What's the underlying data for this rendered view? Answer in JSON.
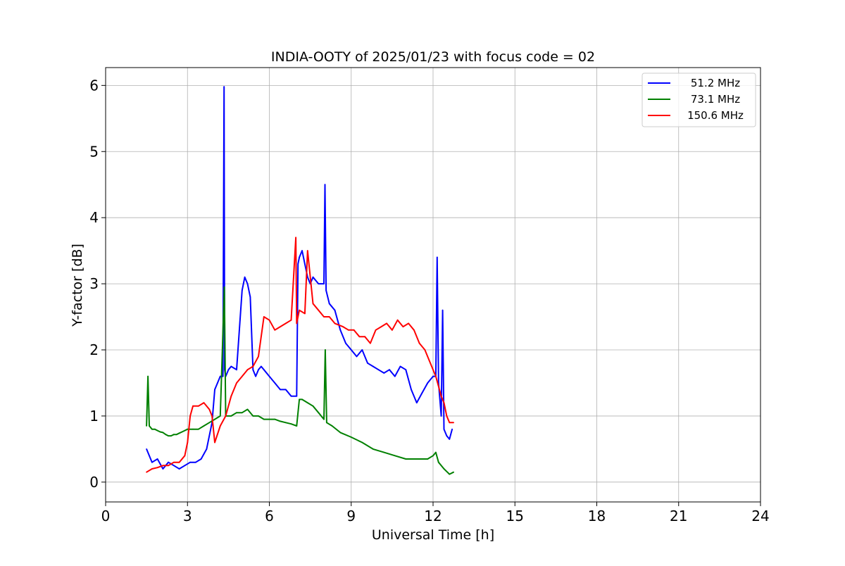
{
  "chart_data": {
    "type": "line",
    "title": "INDIA-OOTY of 2025/01/23 with focus code = 02",
    "xlabel": "Universal Time [h]",
    "ylabel": "Y-factor [dB]",
    "xlim": [
      0,
      24
    ],
    "ylim": [
      -0.3,
      6.27
    ],
    "xticks": [
      0,
      3,
      6,
      9,
      12,
      15,
      18,
      21,
      24
    ],
    "yticks": [
      0,
      1,
      2,
      3,
      4,
      5,
      6
    ],
    "grid": true,
    "legend_position": "top-right",
    "series": [
      {
        "name": "51.2 MHz",
        "color": "#0000ff",
        "x": [
          1.5,
          1.7,
          1.9,
          2.1,
          2.3,
          2.5,
          2.7,
          2.9,
          3.1,
          3.3,
          3.5,
          3.7,
          3.9,
          4.0,
          4.1,
          4.2,
          4.3,
          4.34,
          4.36,
          4.4,
          4.5,
          4.6,
          4.8,
          4.9,
          5.0,
          5.1,
          5.2,
          5.3,
          5.4,
          5.5,
          5.6,
          5.7,
          5.8,
          5.9,
          6.0,
          6.2,
          6.4,
          6.6,
          6.8,
          7.0,
          7.05,
          7.1,
          7.2,
          7.3,
          7.4,
          7.5,
          7.6,
          7.8,
          8.0,
          8.04,
          8.08,
          8.2,
          8.4,
          8.6,
          8.8,
          9.0,
          9.2,
          9.4,
          9.6,
          9.8,
          10.0,
          10.2,
          10.4,
          10.6,
          10.8,
          11.0,
          11.2,
          11.4,
          11.6,
          11.8,
          12.0,
          12.1,
          12.15,
          12.2,
          12.3,
          12.35,
          12.4,
          12.5,
          12.6,
          12.7
        ],
        "values": [
          0.5,
          0.3,
          0.35,
          0.2,
          0.3,
          0.25,
          0.2,
          0.25,
          0.3,
          0.3,
          0.35,
          0.5,
          0.9,
          1.4,
          1.5,
          1.6,
          1.6,
          5.98,
          1.7,
          1.6,
          1.7,
          1.75,
          1.7,
          2.3,
          2.9,
          3.1,
          3.0,
          2.8,
          1.7,
          1.6,
          1.7,
          1.75,
          1.7,
          1.65,
          1.6,
          1.5,
          1.4,
          1.4,
          1.3,
          1.3,
          3.3,
          3.4,
          3.5,
          3.3,
          3.1,
          3.0,
          3.1,
          3.0,
          3.0,
          4.5,
          2.9,
          2.7,
          2.6,
          2.3,
          2.1,
          2.0,
          1.9,
          2.0,
          1.8,
          1.75,
          1.7,
          1.65,
          1.7,
          1.6,
          1.75,
          1.7,
          1.4,
          1.2,
          1.35,
          1.5,
          1.6,
          1.6,
          3.4,
          1.5,
          1.0,
          2.6,
          0.8,
          0.7,
          0.65,
          0.8
        ]
      },
      {
        "name": "73.1 MHz",
        "color": "#008000",
        "x": [
          1.5,
          1.55,
          1.6,
          1.7,
          1.8,
          1.9,
          2.0,
          2.1,
          2.2,
          2.3,
          2.4,
          2.5,
          2.6,
          2.7,
          2.8,
          2.9,
          3.0,
          3.2,
          3.4,
          3.6,
          3.8,
          4.0,
          4.2,
          4.35,
          4.4,
          4.6,
          4.8,
          5.0,
          5.2,
          5.4,
          5.6,
          5.8,
          6.0,
          6.2,
          6.4,
          6.6,
          6.8,
          7.0,
          7.1,
          7.2,
          7.4,
          7.6,
          7.8,
          8.0,
          8.05,
          8.1,
          8.3,
          8.6,
          9.0,
          9.4,
          9.8,
          10.2,
          10.6,
          11.0,
          11.4,
          11.8,
          12.0,
          12.1,
          12.2,
          12.4,
          12.6,
          12.75
        ],
        "values": [
          0.85,
          1.6,
          0.85,
          0.8,
          0.8,
          0.78,
          0.76,
          0.75,
          0.72,
          0.7,
          0.7,
          0.72,
          0.72,
          0.74,
          0.76,
          0.78,
          0.8,
          0.8,
          0.8,
          0.85,
          0.9,
          0.95,
          1.0,
          2.95,
          1.0,
          1.0,
          1.05,
          1.05,
          1.1,
          1.0,
          1.0,
          0.95,
          0.95,
          0.95,
          0.92,
          0.9,
          0.88,
          0.85,
          1.25,
          1.25,
          1.2,
          1.15,
          1.05,
          0.95,
          2.0,
          0.9,
          0.85,
          0.75,
          0.68,
          0.6,
          0.5,
          0.45,
          0.4,
          0.35,
          0.35,
          0.35,
          0.4,
          0.45,
          0.3,
          0.2,
          0.12,
          0.15
        ]
      },
      {
        "name": "150.6 MHz",
        "color": "#ff0000",
        "x": [
          1.5,
          1.7,
          1.9,
          2.1,
          2.3,
          2.5,
          2.7,
          2.9,
          3.0,
          3.1,
          3.2,
          3.4,
          3.6,
          3.8,
          3.9,
          4.0,
          4.2,
          4.4,
          4.6,
          4.8,
          5.0,
          5.2,
          5.4,
          5.6,
          5.8,
          6.0,
          6.2,
          6.4,
          6.6,
          6.8,
          6.97,
          7.0,
          7.1,
          7.3,
          7.4,
          7.6,
          7.8,
          8.0,
          8.2,
          8.4,
          8.7,
          8.9,
          9.1,
          9.3,
          9.5,
          9.7,
          9.9,
          10.1,
          10.3,
          10.5,
          10.7,
          10.9,
          11.1,
          11.3,
          11.5,
          11.7,
          11.9,
          12.1,
          12.3,
          12.4,
          12.5,
          12.6,
          12.75
        ],
        "values": [
          0.15,
          0.2,
          0.22,
          0.25,
          0.25,
          0.3,
          0.3,
          0.4,
          0.6,
          1.0,
          1.15,
          1.15,
          1.2,
          1.1,
          1.0,
          0.6,
          0.85,
          1.0,
          1.3,
          1.5,
          1.6,
          1.7,
          1.75,
          1.9,
          2.5,
          2.45,
          2.3,
          2.35,
          2.4,
          2.45,
          3.7,
          2.4,
          2.6,
          2.55,
          3.5,
          2.7,
          2.6,
          2.5,
          2.5,
          2.4,
          2.35,
          2.3,
          2.3,
          2.2,
          2.2,
          2.1,
          2.3,
          2.35,
          2.4,
          2.3,
          2.45,
          2.35,
          2.4,
          2.3,
          2.1,
          2.0,
          1.8,
          1.6,
          1.3,
          1.2,
          1.0,
          0.9,
          0.9
        ]
      }
    ]
  }
}
